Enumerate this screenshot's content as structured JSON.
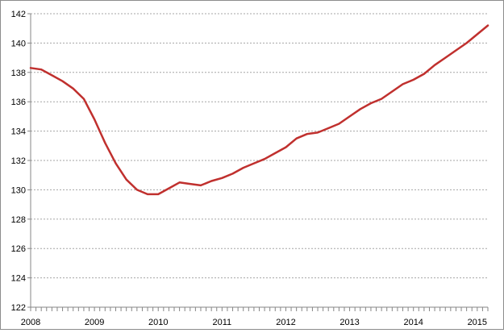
{
  "chart_data": {
    "type": "line",
    "title": "",
    "xlabel": "",
    "ylabel": "",
    "xlim": [
      "2008-01",
      "2015-03"
    ],
    "ylim": [
      122,
      142
    ],
    "y_ticks": [
      122,
      124,
      126,
      128,
      130,
      132,
      134,
      136,
      138,
      140,
      142
    ],
    "x_ticks": [
      "2008",
      "2009",
      "2010",
      "2011",
      "2012",
      "2013",
      "2014",
      "2015"
    ],
    "grid": "horizontal",
    "legend": "none",
    "line_color": "#c0302e",
    "grid_color": "#a6a6a6",
    "series": [
      {
        "x": [
          "2008-01",
          "2008-03",
          "2008-05",
          "2008-07",
          "2008-09",
          "2008-11",
          "2009-01",
          "2009-03",
          "2009-05",
          "2009-07",
          "2009-09",
          "2009-11",
          "2010-01",
          "2010-03",
          "2010-05",
          "2010-07",
          "2010-09",
          "2010-11",
          "2011-01",
          "2011-03",
          "2011-05",
          "2011-07",
          "2011-09",
          "2011-11",
          "2012-01",
          "2012-03",
          "2012-05",
          "2012-07",
          "2012-09",
          "2012-11",
          "2013-01",
          "2013-03",
          "2013-05",
          "2013-07",
          "2013-09",
          "2013-11",
          "2014-01",
          "2014-03",
          "2014-05",
          "2014-07",
          "2014-09",
          "2014-11",
          "2015-01",
          "2015-03"
        ],
        "values": [
          138.3,
          138.2,
          137.8,
          137.4,
          136.9,
          136.2,
          134.8,
          133.2,
          131.8,
          130.7,
          130.0,
          129.7,
          129.7,
          130.1,
          130.5,
          130.4,
          130.3,
          130.6,
          130.8,
          131.1,
          131.5,
          131.8,
          132.1,
          132.5,
          132.9,
          133.5,
          133.8,
          133.9,
          134.2,
          134.5,
          135.0,
          135.5,
          135.9,
          136.2,
          136.7,
          137.2,
          137.5,
          137.9,
          138.5,
          139.0,
          139.5,
          140.0,
          140.6,
          141.2
        ]
      }
    ]
  }
}
